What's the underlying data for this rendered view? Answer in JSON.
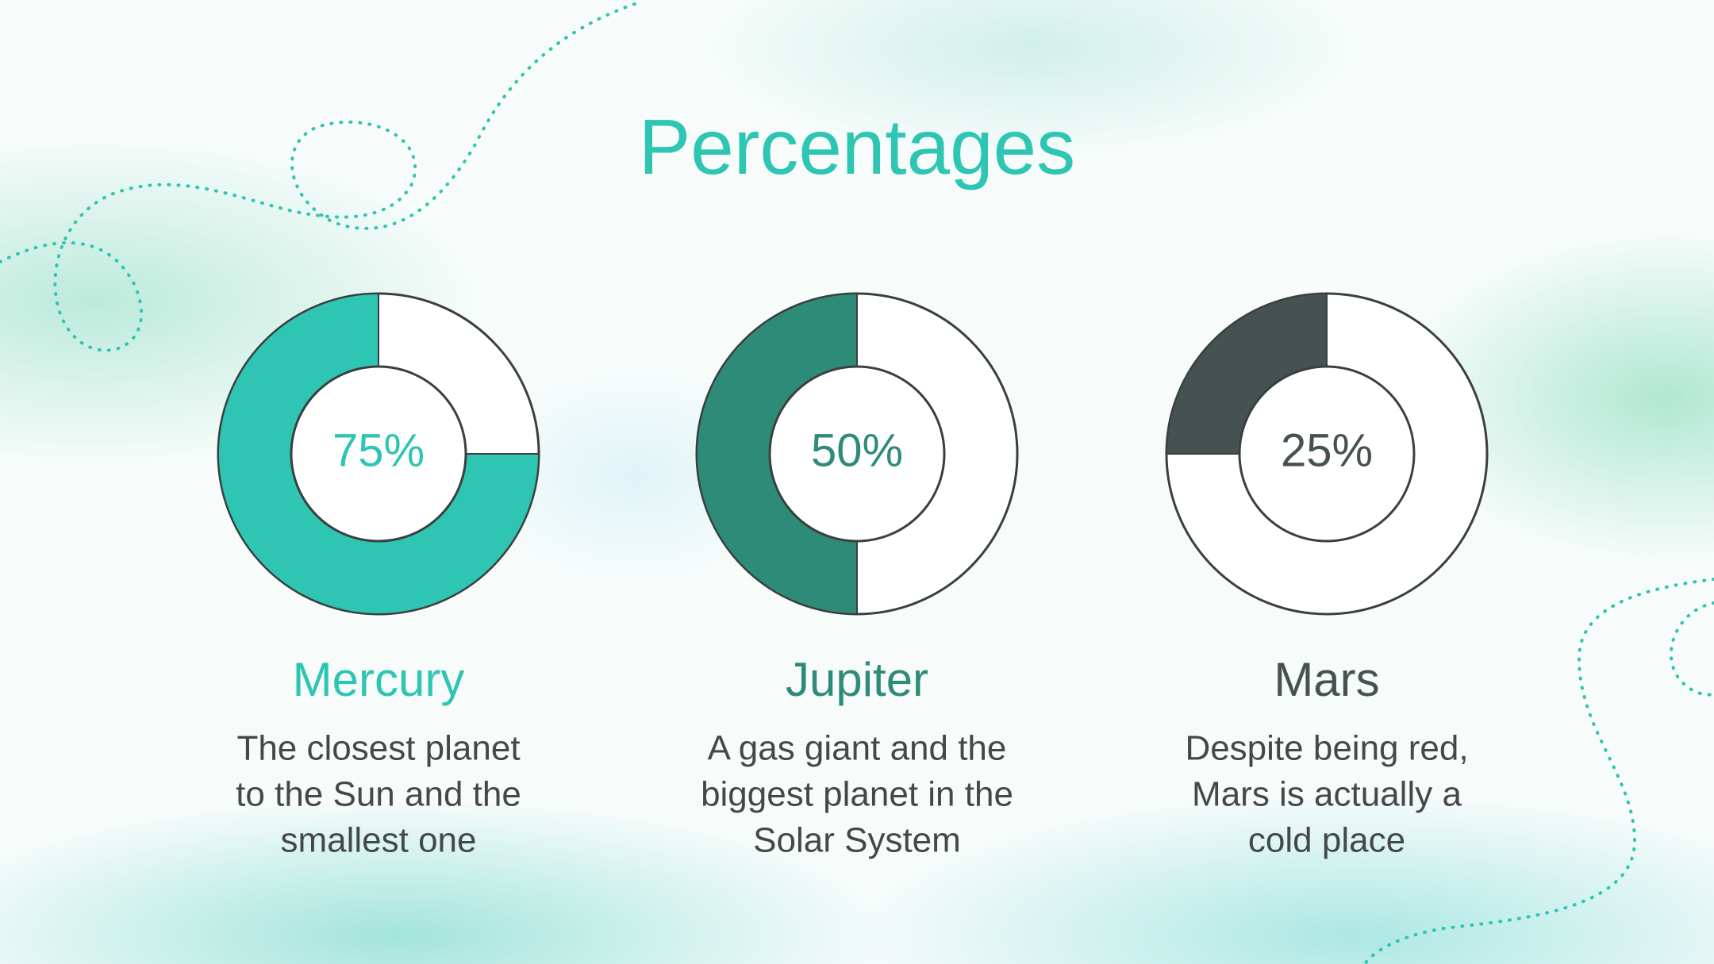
{
  "title": "Percentages",
  "chart_data": [
    {
      "type": "donut",
      "title": "Mercury",
      "values": [
        75
      ],
      "value_labels": [
        "75%"
      ],
      "color": "#2ec5b3",
      "description": [
        "The closest planet",
        "to the Sun and the",
        "smallest one"
      ]
    },
    {
      "type": "donut",
      "title": "Jupiter",
      "values": [
        50
      ],
      "value_labels": [
        "50%"
      ],
      "color": "#2e8b78",
      "description": [
        "A gas giant and the",
        "biggest planet in the",
        "Solar System"
      ]
    },
    {
      "type": "donut",
      "title": "Mars",
      "values": [
        25
      ],
      "value_labels": [
        "25%"
      ],
      "color": "#465252",
      "description": [
        "Despite being red,",
        "Mars is actually a",
        "cold place"
      ]
    }
  ]
}
